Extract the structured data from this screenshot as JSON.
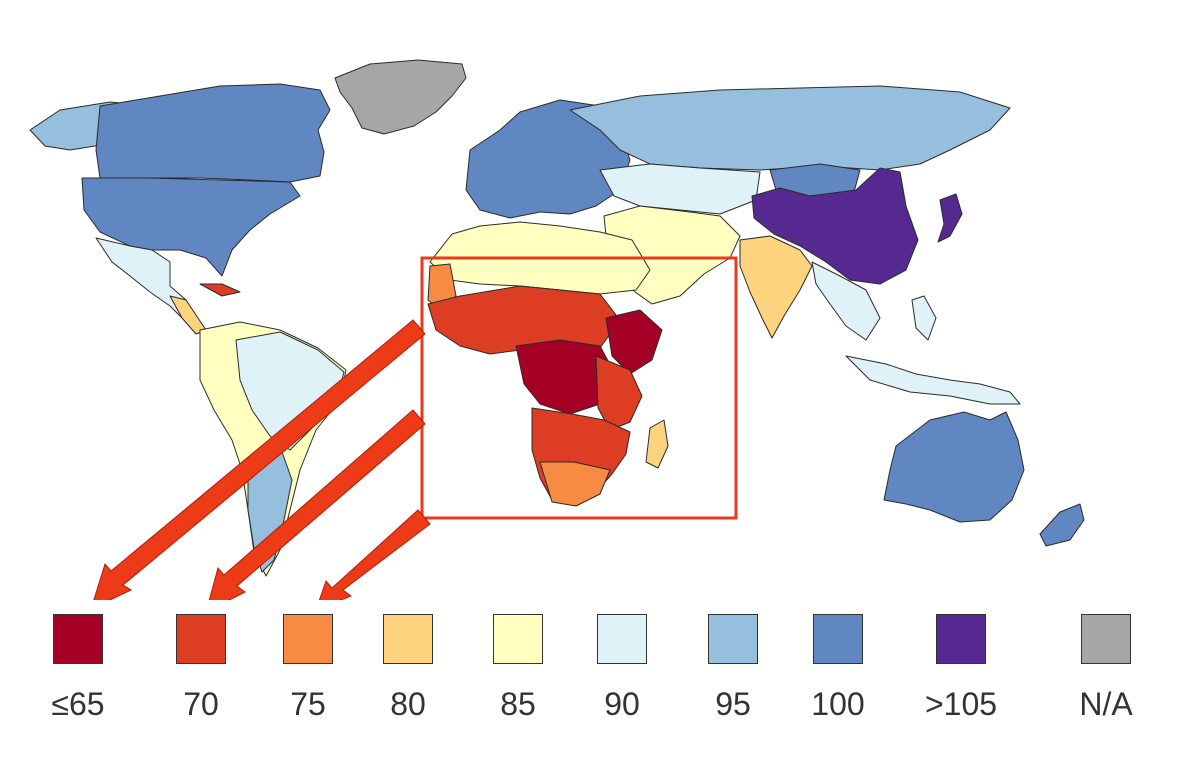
{
  "colors": {
    "le65": "#a50026",
    "c70": "#dd3d22",
    "c75": "#f88b43",
    "c80": "#fdd37d",
    "c85": "#ffffc0",
    "c90": "#dff2f8",
    "c95": "#95bfdc",
    "c100": "#6087c2",
    "gt105": "#55298f",
    "na": "#a6a6a6",
    "highlight": "#ea3a1e",
    "arrow": "#ec3b16"
  },
  "legend": {
    "items": [
      {
        "label": "≤65",
        "color": "#a50026"
      },
      {
        "label": "70",
        "color": "#dd3d22"
      },
      {
        "label": "75",
        "color": "#f88b43"
      },
      {
        "label": "80",
        "color": "#fdd37d"
      },
      {
        "label": "85",
        "color": "#ffffc0"
      },
      {
        "label": "90",
        "color": "#dff2f8"
      },
      {
        "label": "95",
        "color": "#95bfdc"
      },
      {
        "label": "100",
        "color": "#6087c2"
      },
      {
        "label": ">105",
        "color": "#55298f"
      },
      {
        "label": "N/A",
        "color": "#a6a6a6"
      }
    ]
  },
  "map": {
    "highlight_region": "Africa",
    "arrows_point_to": [
      "≤65",
      "70",
      "75"
    ]
  }
}
